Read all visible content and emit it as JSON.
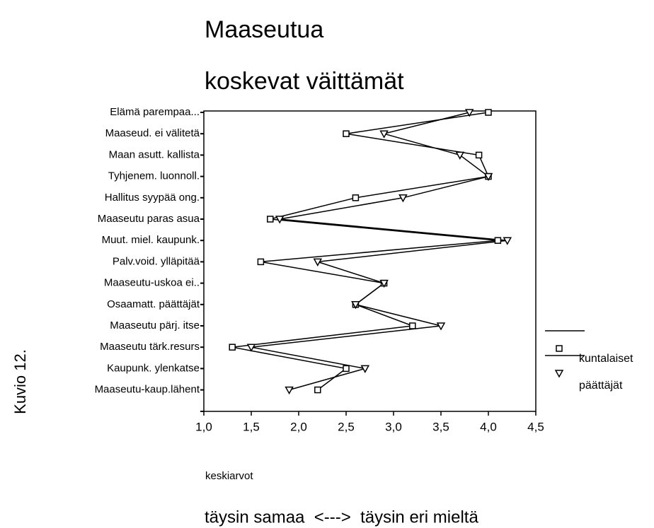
{
  "chart_data": {
    "type": "line",
    "orientation": "horizontal",
    "title": [
      "Maaseutua",
      "koskevat väittämät"
    ],
    "side_label": "Kuvio 12.",
    "xlabel": "keskiarvot",
    "annotation": "täysin samaa  <--->  täysin eri mieltä",
    "categories": [
      "Elämä parempaa...",
      "Maaseud. ei välitetä",
      "Maan asutt. kallista",
      "Tyhjenem. luonnoll.",
      "Hallitus syypää ong.",
      "Maaseutu paras asua",
      "Muut. miel. kaupunk.",
      "Palv.void. ylläpitää",
      "Maaseutu-uskoa ei..",
      "Osaamatt. päättäjät",
      "Maaseutu pärj. itse",
      "Maaseutu tärk.resurs",
      "Kaupunk. ylenkatse",
      "Maaseutu-kaup.lähent"
    ],
    "series": [
      {
        "name": "kuntalaiset",
        "color": "#000000",
        "marker": "square",
        "values": [
          4.0,
          2.5,
          3.9,
          4.0,
          2.6,
          1.7,
          4.1,
          1.6,
          2.9,
          2.6,
          3.2,
          1.3,
          2.5,
          2.2
        ]
      },
      {
        "name": "päättäjät",
        "color": "#000000",
        "marker": "triangle",
        "values": [
          3.8,
          2.9,
          3.7,
          4.0,
          3.1,
          1.8,
          4.2,
          2.2,
          2.9,
          2.6,
          3.5,
          1.5,
          2.7,
          1.9
        ]
      }
    ],
    "xlim": [
      1.0,
      4.5
    ],
    "xticks": [
      {
        "value": 1.0,
        "label": "1,0"
      },
      {
        "value": 1.5,
        "label": "1,5"
      },
      {
        "value": 2.0,
        "label": "2,0"
      },
      {
        "value": 2.5,
        "label": "2,5"
      },
      {
        "value": 3.0,
        "label": "3,0"
      },
      {
        "value": 3.5,
        "label": "3,5"
      },
      {
        "value": 4.0,
        "label": "4,0"
      },
      {
        "value": 4.5,
        "label": "4,5"
      }
    ],
    "legend": "right"
  }
}
